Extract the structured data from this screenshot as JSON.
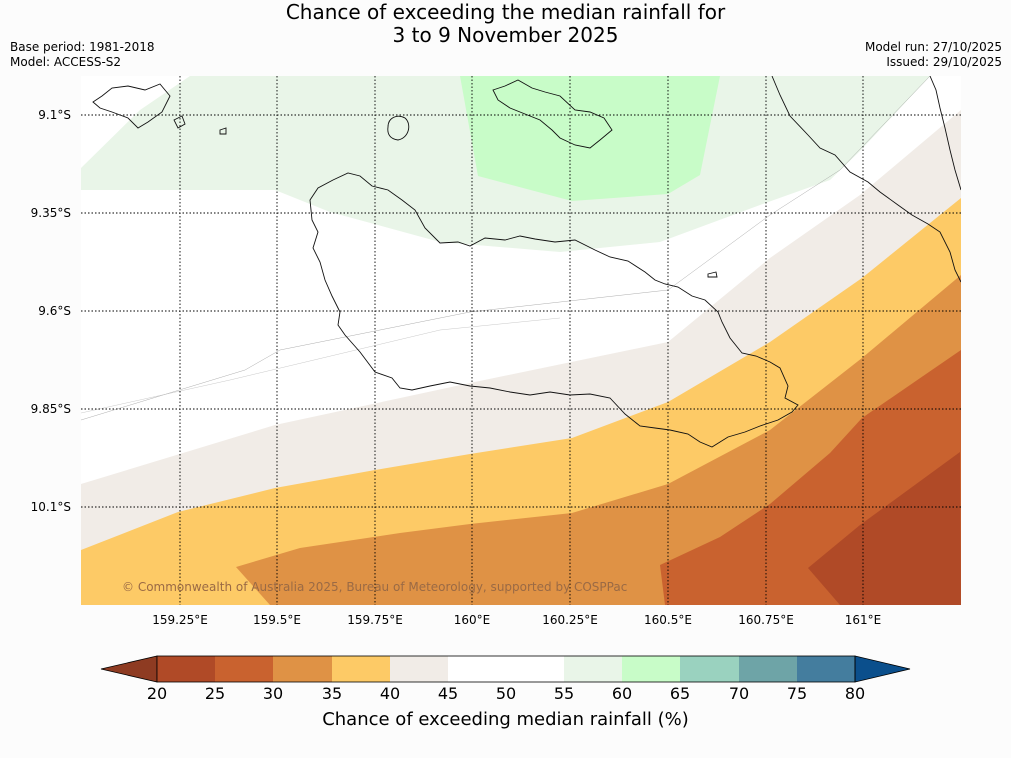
{
  "title": {
    "line1": "Chance of exceeding the median rainfall for",
    "line2": "3 to 9 November 2025"
  },
  "meta": {
    "base_period": "Base period: 1981-2018",
    "model": "Model: ACCESS-S2",
    "model_run": "Model run: 27/10/2025",
    "issued": "Issued: 29/10/2025"
  },
  "axes": {
    "lat_labels": [
      "9.1°S",
      "9.35°S",
      "9.6°S",
      "9.85°S",
      "10.1°S"
    ],
    "lon_labels": [
      "159.25°E",
      "159.5°E",
      "159.75°E",
      "160°E",
      "160.25°E",
      "160.5°E",
      "160.75°E",
      "161°E"
    ]
  },
  "credit": "© Commonwealth of Australia 2025, Bureau of Meteorology, supported by COSPPac",
  "colorbar": {
    "title": "Chance of exceeding median rainfall (%)",
    "ticks": [
      "20",
      "25",
      "30",
      "35",
      "40",
      "45",
      "50",
      "55",
      "60",
      "65",
      "70",
      "75",
      "80"
    ],
    "colors": {
      "below_20": "#8e3b22",
      "c20_25": "#b04a27",
      "c25_30": "#c9622f",
      "c30_35": "#df9245",
      "c35_40": "#fdca66",
      "c40_45": "#f1ece7",
      "c45_50": "#ffffff",
      "c50_55": "#ffffff",
      "c55_60": "#e9f5e8",
      "c60_65": "#c8fcc8",
      "c65_70": "#9ad2bf",
      "c70_75": "#6ea4a7",
      "c75_80": "#447d9e",
      "above_80": "#0b4f8c"
    }
  }
}
